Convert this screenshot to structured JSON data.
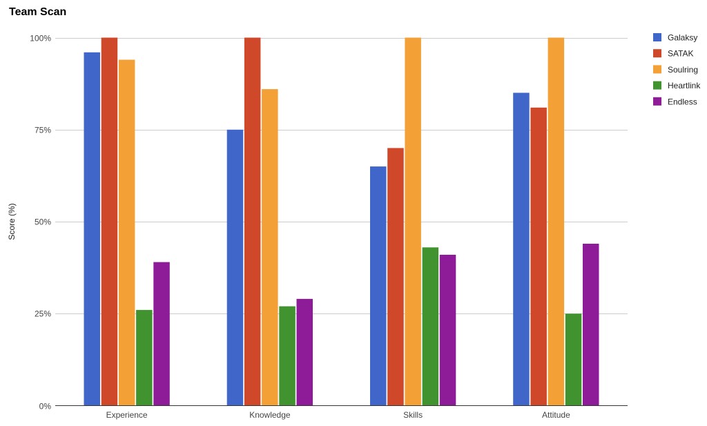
{
  "chart_data": {
    "type": "bar",
    "title": "Team Scan",
    "xlabel": "",
    "ylabel": "Score (%)",
    "ylim": [
      0,
      100
    ],
    "yticks": [
      0,
      25,
      50,
      75,
      100
    ],
    "ytick_labels": [
      "0%",
      "25%",
      "50%",
      "75%",
      "100%"
    ],
    "grid": true,
    "legend_position": "right",
    "categories": [
      "Experience",
      "Knowledge",
      "Skills",
      "Attitude"
    ],
    "series": [
      {
        "name": "Galaksy",
        "color": "#4166c9",
        "values": [
          96,
          75,
          65,
          85
        ]
      },
      {
        "name": "SATAK",
        "color": "#d0482a",
        "values": [
          100,
          100,
          70,
          81
        ]
      },
      {
        "name": "Soulring",
        "color": "#f3a137",
        "values": [
          94,
          86,
          100,
          100
        ]
      },
      {
        "name": "Heartlink",
        "color": "#41932f",
        "values": [
          26,
          27,
          43,
          25
        ]
      },
      {
        "name": "Endless",
        "color": "#8e1c98",
        "values": [
          39,
          29,
          41,
          44
        ]
      }
    ]
  }
}
